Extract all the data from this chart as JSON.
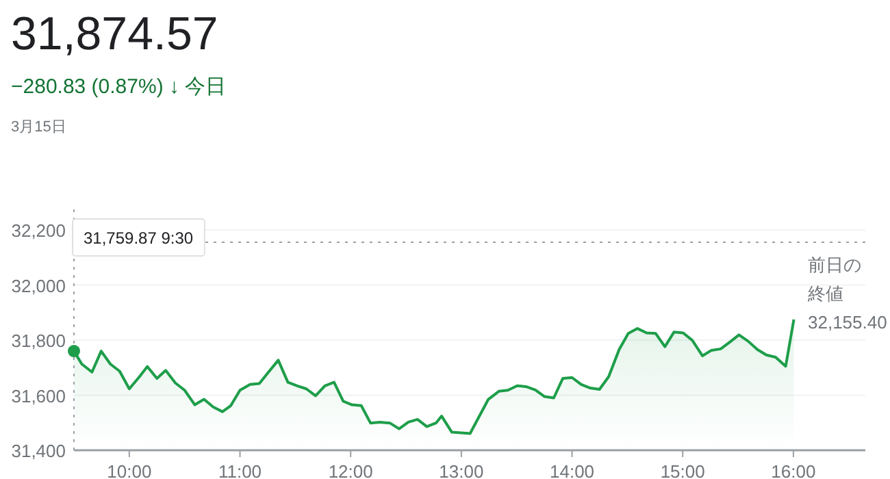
{
  "chart_data": {
    "type": "area",
    "title": "31,874.57",
    "subtitle": "−280.83 (0.87%) ↓ 今日",
    "annotations": [
      "3月15日",
      "31,759.87 9:30"
    ],
    "x": [
      9.5,
      9.571,
      9.663,
      9.746,
      9.829,
      9.913,
      10.0,
      10.092,
      10.163,
      10.25,
      10.329,
      10.417,
      10.5,
      10.592,
      10.675,
      10.758,
      10.842,
      10.917,
      11.0,
      11.092,
      11.175,
      11.258,
      11.346,
      11.433,
      11.517,
      11.6,
      11.683,
      11.767,
      11.85,
      11.933,
      12.012,
      12.096,
      12.179,
      12.263,
      12.354,
      12.438,
      12.521,
      12.604,
      12.688,
      12.771,
      12.822,
      12.913,
      13.079,
      13.244,
      13.339,
      13.421,
      13.504,
      13.587,
      13.669,
      13.752,
      13.835,
      13.917,
      14.0,
      14.083,
      14.165,
      14.248,
      14.331,
      14.426,
      14.508,
      14.591,
      14.674,
      14.756,
      14.839,
      14.921,
      15.004,
      15.087,
      15.178,
      15.26,
      15.343,
      15.426,
      15.508,
      15.591,
      15.674,
      15.756,
      15.839,
      15.93,
      16.004
    ],
    "series": [
      {
        "color": "#1e9e4a",
        "values": [
          31760,
          31713,
          31684,
          31760,
          31713,
          31687,
          31623,
          31667,
          31704,
          31661,
          31690,
          31644,
          31618,
          31565,
          31585,
          31557,
          31540,
          31562,
          31618,
          31639,
          31642,
          31684,
          31727,
          31647,
          31634,
          31623,
          31598,
          31634,
          31647,
          31578,
          31565,
          31562,
          31499,
          31502,
          31499,
          31478,
          31502,
          31512,
          31486,
          31499,
          31524,
          31466,
          31461,
          31585,
          31614,
          31618,
          31634,
          31631,
          31619,
          31595,
          31590,
          31661,
          31664,
          31639,
          31626,
          31621,
          31667,
          31766,
          31824,
          31842,
          31826,
          31824,
          31776,
          31829,
          31826,
          31799,
          31743,
          31763,
          31768,
          31793,
          31819,
          31796,
          31766,
          31746,
          31738,
          31705,
          31875
        ]
      }
    ],
    "xlim": [
      9.5,
      16.65
    ],
    "ylim": [
      31400,
      32200
    ],
    "xticks": [
      {
        "value": 10,
        "label": "10:00"
      },
      {
        "value": 11,
        "label": "11:00"
      },
      {
        "value": 12,
        "label": "12:00"
      },
      {
        "value": 13,
        "label": "13:00"
      },
      {
        "value": 14,
        "label": "14:00"
      },
      {
        "value": 15,
        "label": "15:00"
      },
      {
        "value": 16,
        "label": "16:00"
      }
    ],
    "yticks": [
      {
        "value": 31400,
        "label": "31,400"
      },
      {
        "value": 31600,
        "label": "31,600"
      },
      {
        "value": 31800,
        "label": "31,800"
      },
      {
        "value": 32000,
        "label": "32,000"
      },
      {
        "value": 32200,
        "label": "32,200"
      }
    ],
    "ref_lines": [
      {
        "axis": "y",
        "value": 32155.4,
        "label": "前日の終値 32,155.40",
        "line_style": "dotted",
        "color": "#9aa0a6"
      },
      {
        "axis": "x",
        "value": 9.5,
        "line_style": "dotted",
        "color": "#9aa0a6"
      }
    ],
    "grid": "y"
  }
}
